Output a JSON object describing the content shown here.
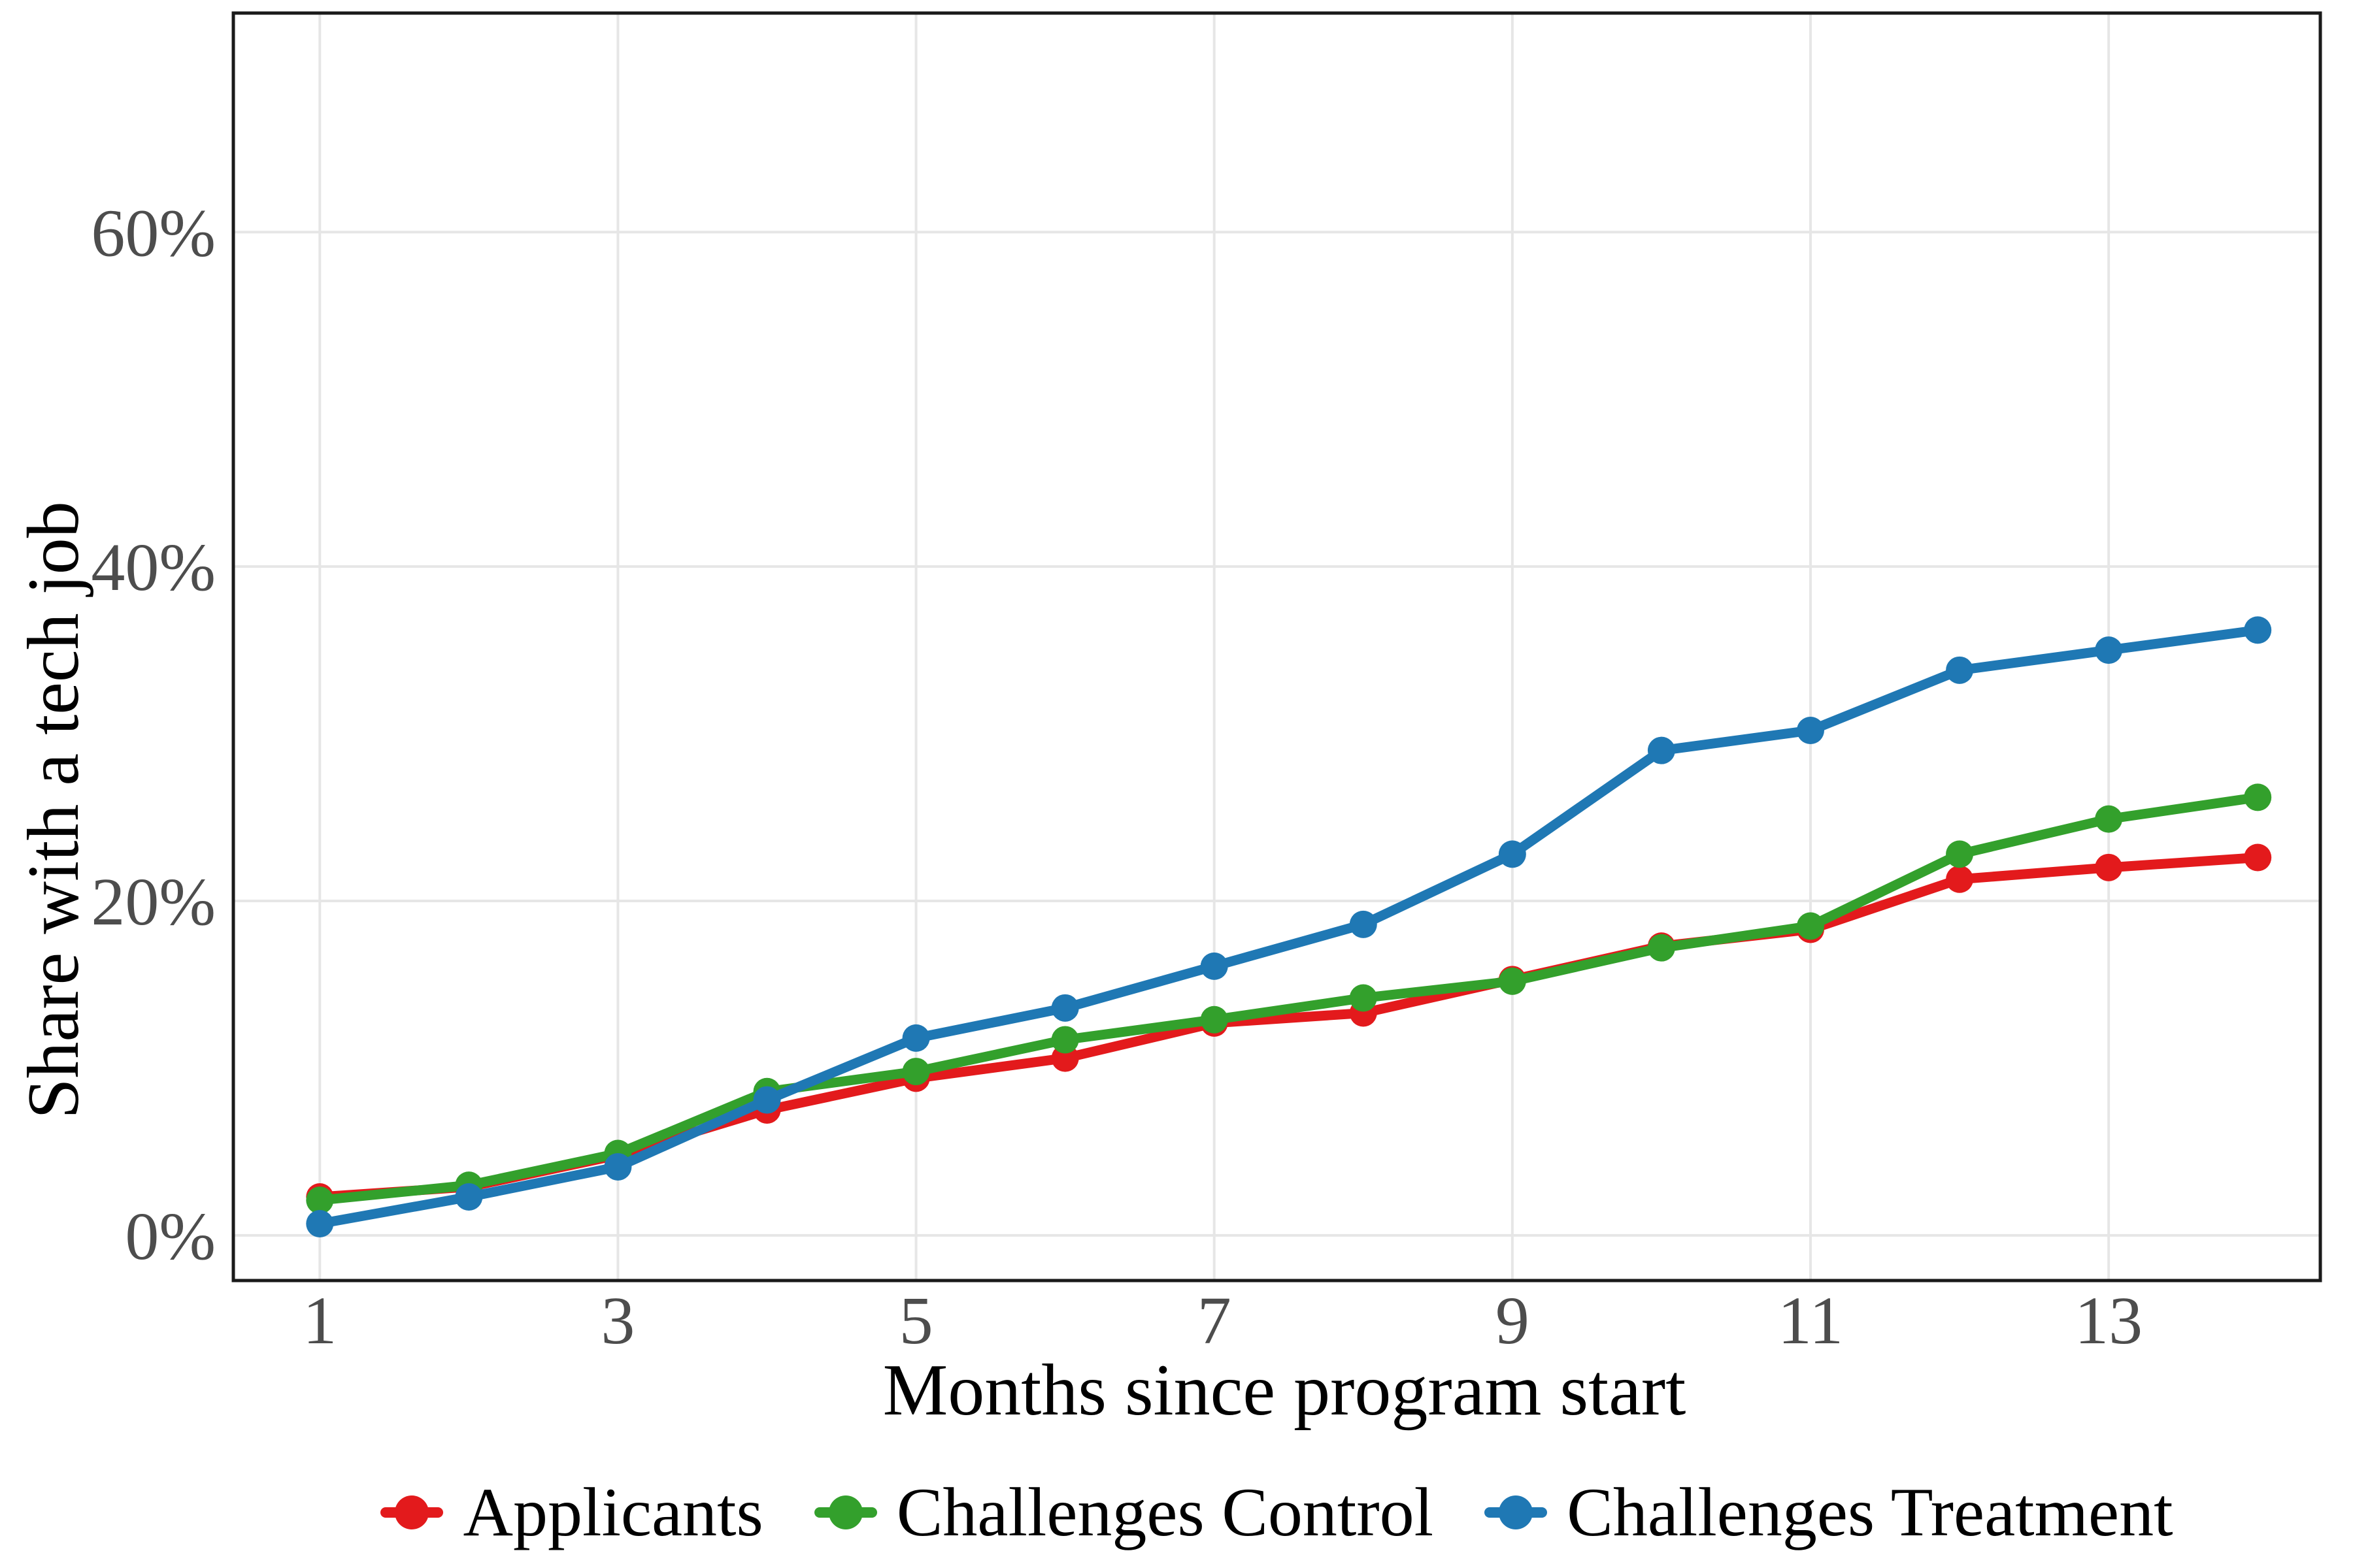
{
  "chart_data": {
    "type": "line",
    "title": "",
    "xlabel": "Months since program start",
    "ylabel": "Share with a tech job",
    "x": [
      1,
      2,
      3,
      4,
      5,
      6,
      7,
      8,
      9,
      10,
      11,
      12,
      13,
      14
    ],
    "x_ticks": [
      {
        "v": 1,
        "label": "1"
      },
      {
        "v": 3,
        "label": "3"
      },
      {
        "v": 5,
        "label": "5"
      },
      {
        "v": 7,
        "label": "7"
      },
      {
        "v": 9,
        "label": "9"
      },
      {
        "v": 11,
        "label": "11"
      },
      {
        "v": 13,
        "label": "13"
      }
    ],
    "y_ticks": [
      {
        "v": 0,
        "label": "0%"
      },
      {
        "v": 20,
        "label": "20%"
      },
      {
        "v": 40,
        "label": "40%"
      },
      {
        "v": 60,
        "label": "60%"
      }
    ],
    "xlim": [
      0.42,
      14.42
    ],
    "ylim": [
      -2.7,
      73.1
    ],
    "grid": true,
    "legend_position": "bottom",
    "colors": {
      "grid": "#e6e6e6",
      "axis_text": "#4d4d4d",
      "axis_title": "#000000",
      "panel_border": "#1a1a1a",
      "background": "#ffffff"
    },
    "series": [
      {
        "name": "Applicants",
        "color": "#e31a1c",
        "values": [
          2.3,
          2.9,
          4.8,
          7.5,
          9.4,
          10.6,
          12.7,
          13.3,
          15.3,
          17.3,
          18.3,
          21.3,
          22.0,
          22.6
        ]
      },
      {
        "name": "Challenges Control",
        "color": "#33a02c",
        "values": [
          2.1,
          3.0,
          4.9,
          8.6,
          9.8,
          11.7,
          12.9,
          14.2,
          15.2,
          17.2,
          18.5,
          22.8,
          24.9,
          26.2
        ]
      },
      {
        "name": "Challenges Treatment",
        "color": "#1f78b4",
        "values": [
          0.7,
          2.3,
          4.1,
          8.1,
          11.8,
          13.6,
          16.1,
          18.6,
          22.8,
          29.0,
          30.2,
          33.8,
          35.0,
          36.2
        ]
      }
    ]
  }
}
